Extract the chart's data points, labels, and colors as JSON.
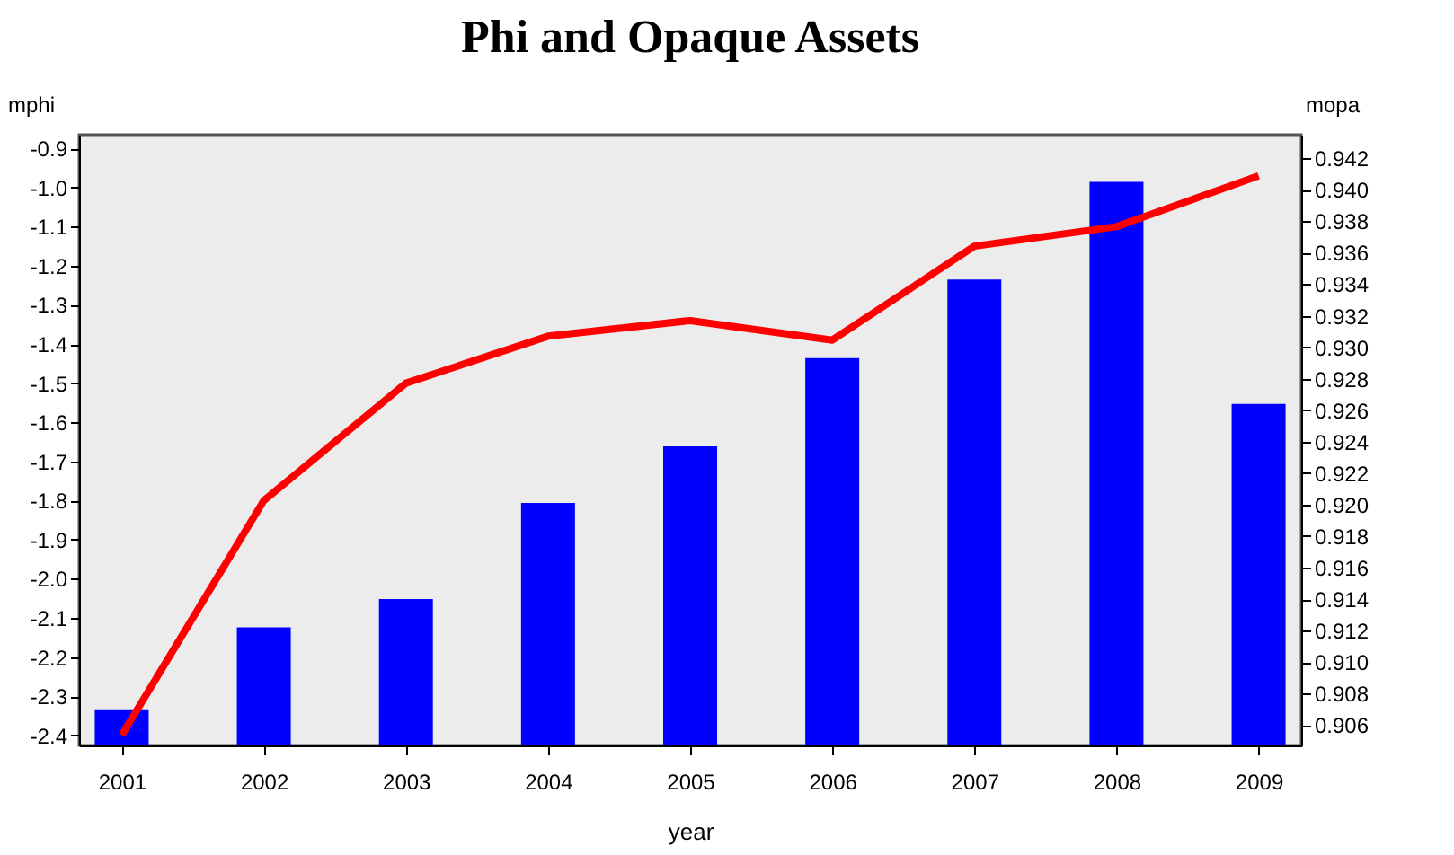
{
  "chart_data": {
    "type": "line",
    "title": "Phi and Opaque Assets",
    "xlabel": "year",
    "ylabel": "mphi",
    "y2label": "mopa",
    "categories": [
      "2001",
      "2002",
      "2003",
      "2004",
      "2005",
      "2006",
      "2007",
      "2008",
      "2009"
    ],
    "series": [
      {
        "color": "#ff0000",
        "values": [
          -2.4,
          -1.8,
          -1.5,
          -1.38,
          -1.34,
          -1.39,
          -1.15,
          -1.1,
          -0.97
        ]
      },
      {
        "type": "bar",
        "axis": "y2",
        "color": "#0000ff",
        "values": [
          0.907,
          0.9122,
          0.914,
          0.9201,
          0.9237,
          0.9293,
          0.9343,
          0.9405,
          0.9264
        ]
      }
    ],
    "ylim": [
      -2.426,
      -0.865
    ],
    "yticks": [
      {
        "value": -2.4,
        "label": "-2.4"
      },
      {
        "value": -2.3,
        "label": "-2.3"
      },
      {
        "value": -2.2,
        "label": "-2.2"
      },
      {
        "value": -2.1,
        "label": "-2.1"
      },
      {
        "value": -2,
        "label": "-2.0"
      },
      {
        "value": -1.9,
        "label": "-1.9"
      },
      {
        "value": -1.8,
        "label": "-1.8"
      },
      {
        "value": -1.7,
        "label": "-1.7"
      },
      {
        "value": -1.6,
        "label": "-1.6"
      },
      {
        "value": -1.5,
        "label": "-1.5"
      },
      {
        "value": -1.4,
        "label": "-1.4"
      },
      {
        "value": -1.3,
        "label": "-1.3"
      },
      {
        "value": -1.2,
        "label": "-1.2"
      },
      {
        "value": -1.1,
        "label": "-1.1"
      },
      {
        "value": -1,
        "label": "-1.0"
      },
      {
        "value": -0.9,
        "label": "-0.9"
      }
    ],
    "y2lim": [
      0.9047,
      0.9435
    ],
    "y2ticks": [
      {
        "value": 0.906,
        "label": "0.906"
      },
      {
        "value": 0.908,
        "label": "0.908"
      },
      {
        "value": 0.91,
        "label": "0.910"
      },
      {
        "value": 0.912,
        "label": "0.912"
      },
      {
        "value": 0.914,
        "label": "0.914"
      },
      {
        "value": 0.916,
        "label": "0.916"
      },
      {
        "value": 0.918,
        "label": "0.918"
      },
      {
        "value": 0.92,
        "label": "0.920"
      },
      {
        "value": 0.922,
        "label": "0.922"
      },
      {
        "value": 0.924,
        "label": "0.924"
      },
      {
        "value": 0.926,
        "label": "0.926"
      },
      {
        "value": 0.928,
        "label": "0.928"
      },
      {
        "value": 0.93,
        "label": "0.930"
      },
      {
        "value": 0.932,
        "label": "0.932"
      },
      {
        "value": 0.934,
        "label": "0.934"
      },
      {
        "value": 0.936,
        "label": "0.936"
      },
      {
        "value": 0.938,
        "label": "0.938"
      },
      {
        "value": 0.94,
        "label": "0.940"
      },
      {
        "value": 0.942,
        "label": "0.942"
      }
    ]
  }
}
